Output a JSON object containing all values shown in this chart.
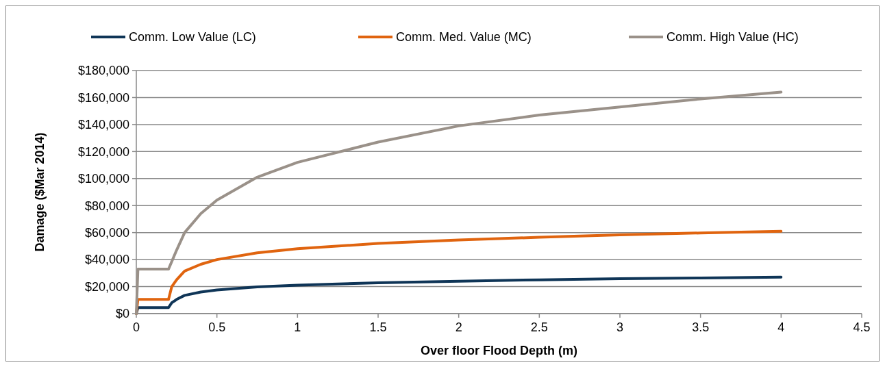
{
  "chart_data": {
    "type": "line",
    "xlabel": "Over floor Flood Depth (m)",
    "ylabel": "Damage ($Mar 2014)",
    "legend": "top",
    "grid": "y",
    "marker": "none",
    "line_style": "solid",
    "xlim": [
      0,
      4.5
    ],
    "xticks": [
      0,
      0.5,
      1,
      1.5,
      2,
      2.5,
      3,
      3.5,
      4,
      4.5
    ],
    "ylim": [
      0,
      180000
    ],
    "yticks": [
      {
        "value": 0,
        "label": "$0"
      },
      {
        "value": 20000,
        "label": "$20,000"
      },
      {
        "value": 40000,
        "label": "$40,000"
      },
      {
        "value": 60000,
        "label": "$60,000"
      },
      {
        "value": 80000,
        "label": "$80,000"
      },
      {
        "value": 100000,
        "label": "$100,000"
      },
      {
        "value": 120000,
        "label": "$120,000"
      },
      {
        "value": 140000,
        "label": "$140,000"
      },
      {
        "value": 160000,
        "label": "$160,000"
      },
      {
        "value": 180000,
        "label": "$180,000"
      }
    ],
    "series": [
      {
        "name": "Comm. Low Value (LC)",
        "color": "#0f3557",
        "x": [
          0,
          0.01,
          0.2,
          0.22,
          0.25,
          0.3,
          0.4,
          0.5,
          0.75,
          1,
          1.5,
          2,
          2.5,
          3,
          3.5,
          4
        ],
        "values": [
          0,
          4500,
          4500,
          8000,
          10500,
          13500,
          16000,
          17500,
          19800,
          21000,
          22800,
          24000,
          25000,
          25800,
          26400,
          27000
        ]
      },
      {
        "name": "Comm. Med. Value (MC)",
        "color": "#e0640f",
        "x": [
          0,
          0.01,
          0.2,
          0.22,
          0.25,
          0.28,
          0.3,
          0.4,
          0.5,
          0.75,
          1,
          1.5,
          2,
          2.5,
          3,
          3.5,
          4
        ],
        "values": [
          0,
          10500,
          10500,
          20000,
          25000,
          29000,
          31500,
          36500,
          40000,
          45000,
          48000,
          52000,
          54500,
          56500,
          58300,
          59700,
          61000
        ]
      },
      {
        "name": "Comm. High Value (HC)",
        "color": "#9a9189",
        "x": [
          0,
          0.01,
          0.2,
          0.25,
          0.3,
          0.4,
          0.5,
          0.75,
          1,
          1.5,
          2,
          2.5,
          3,
          3.5,
          4
        ],
        "values": [
          0,
          33000,
          33000,
          47000,
          60000,
          74000,
          84000,
          101000,
          112000,
          127000,
          139000,
          147000,
          153000,
          159000,
          164000
        ]
      }
    ]
  }
}
